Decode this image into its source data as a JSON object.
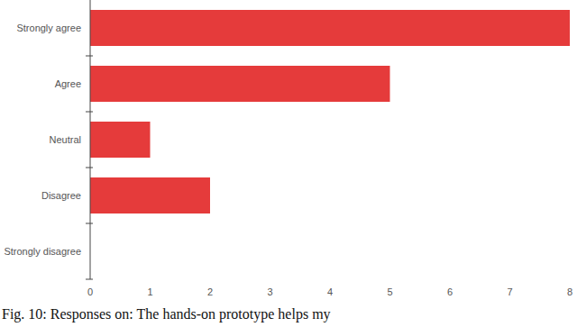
{
  "chart_data": {
    "type": "bar",
    "orientation": "horizontal",
    "categories": [
      "Strongly agree",
      "Agree",
      "Neutral",
      "Disagree",
      "Strongly disagree"
    ],
    "values": [
      8,
      5,
      1,
      2,
      0
    ],
    "color": "#e53b3b",
    "xlim": [
      0,
      8
    ],
    "xticks": [
      0,
      1,
      2,
      3,
      4,
      5,
      6,
      7,
      8
    ],
    "grid": false,
    "caption": "Fig. 10: Responses on: The hands-on prototype helps my"
  }
}
